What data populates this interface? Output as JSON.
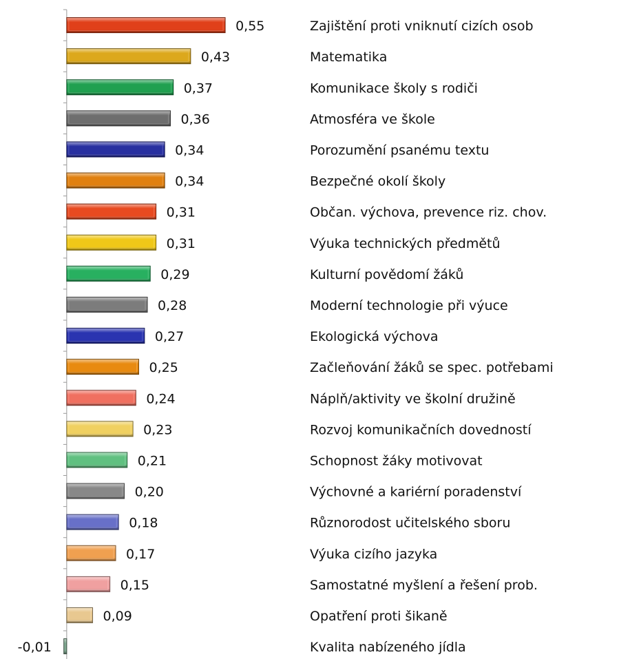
{
  "chart_data": {
    "type": "barh",
    "categories": [
      "Zajištění proti vniknutí cizích osob",
      "Matematika",
      "Komunikace školy s rodiči",
      "Atmosféra ve škole",
      "Porozumění psanému textu",
      "Bezpečné okolí školy",
      "Občan. výchova, prevence riz. chov.",
      "Výuka technických předmětů",
      "Kulturní povědomí žáků",
      "Moderní technologie při výuce",
      "Ekologická výchova",
      "Začleňování žáků se spec. potřebami",
      "Náplň/aktivity ve školní družině",
      "Rozvoj komunikačních dovedností",
      "Schopnost žáky motivovat",
      "Výchovné a kariérní poradenství",
      "Různorodost učitelského sboru",
      "Výuka cizího jazyka",
      "Samostatné myšlení a řešení prob.",
      "Opatření proti šikaně",
      "Kvalita nabízeného jídla"
    ],
    "values": [
      0.55,
      0.43,
      0.37,
      0.36,
      0.34,
      0.34,
      0.31,
      0.31,
      0.29,
      0.28,
      0.27,
      0.25,
      0.24,
      0.23,
      0.21,
      0.2,
      0.18,
      0.17,
      0.15,
      0.09,
      -0.01
    ],
    "value_labels": [
      "0,55",
      "0,43",
      "0,37",
      "0,36",
      "0,34",
      "0,34",
      "0,31",
      "0,31",
      "0,29",
      "0,28",
      "0,27",
      "0,25",
      "0,24",
      "0,23",
      "0,21",
      "0,20",
      "0,18",
      "0,17",
      "0,15",
      "0,09",
      "-0,01"
    ],
    "colors": [
      "#e0401a",
      "#dca81c",
      "#20a050",
      "#6e6e6e",
      "#2830a0",
      "#e08010",
      "#e84a20",
      "#f0c818",
      "#28b060",
      "#7c7c7c",
      "#2a34b0",
      "#e88a10",
      "#f07060",
      "#f0d060",
      "#60c080",
      "#888888",
      "#6870c8",
      "#f0a050",
      "#f0a0a0",
      "#e8c890",
      "#80a890"
    ],
    "xlim": [
      -0.1,
      0.6
    ]
  }
}
